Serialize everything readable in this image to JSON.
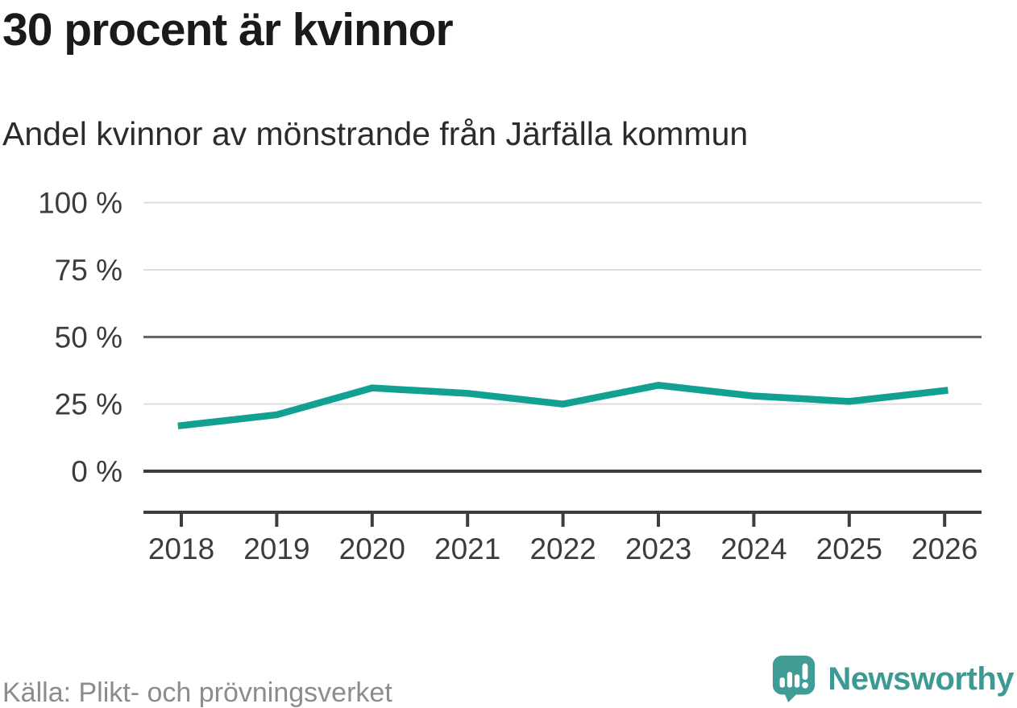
{
  "header": {
    "title": "30 procent är kvinnor",
    "subtitle": "Andel kvinnor av mönstrande från Järfälla kommun"
  },
  "footer": {
    "source": "Källa: Plikt- och prövningsverket"
  },
  "branding": {
    "logo_text": "Newsworthy",
    "logo_color": "#3b9a93",
    "logo_icon": "bar-chart-exclamation-speech-bubble"
  },
  "style": {
    "line_color": "#11a092",
    "grid_color": "#dcdcdc",
    "axis_color": "#3d3d3d",
    "reference_line_color": "#5f6163",
    "tick_label_color": "#3c3c3c",
    "title_color": "#1a1a18",
    "subtitle_color": "#2b2b29",
    "source_color": "#8c8c8c"
  },
  "chart_data": {
    "type": "line",
    "title": "30 procent är kvinnor",
    "subtitle": "Andel kvinnor av mönstrande från Järfälla kommun",
    "categories": [
      "2018",
      "2019",
      "2020",
      "2021",
      "2022",
      "2023",
      "2024",
      "2025",
      "2026"
    ],
    "series": [
      {
        "name": "Andel kvinnor av mönstrande",
        "values": [
          17,
          21,
          31,
          29,
          25,
          32,
          28,
          26,
          30
        ]
      }
    ],
    "unit": "%",
    "xlabel": "",
    "ylabel": "",
    "ylim": [
      0,
      100
    ],
    "yticks": [
      0,
      25,
      50,
      75,
      100
    ],
    "ytick_labels": [
      "0 %",
      "25 %",
      "50 %",
      "75 %",
      "100 %"
    ],
    "reference_line_y": 50,
    "grid": true,
    "legend": "none",
    "source": "Källa: Plikt- och prövningsverket"
  }
}
